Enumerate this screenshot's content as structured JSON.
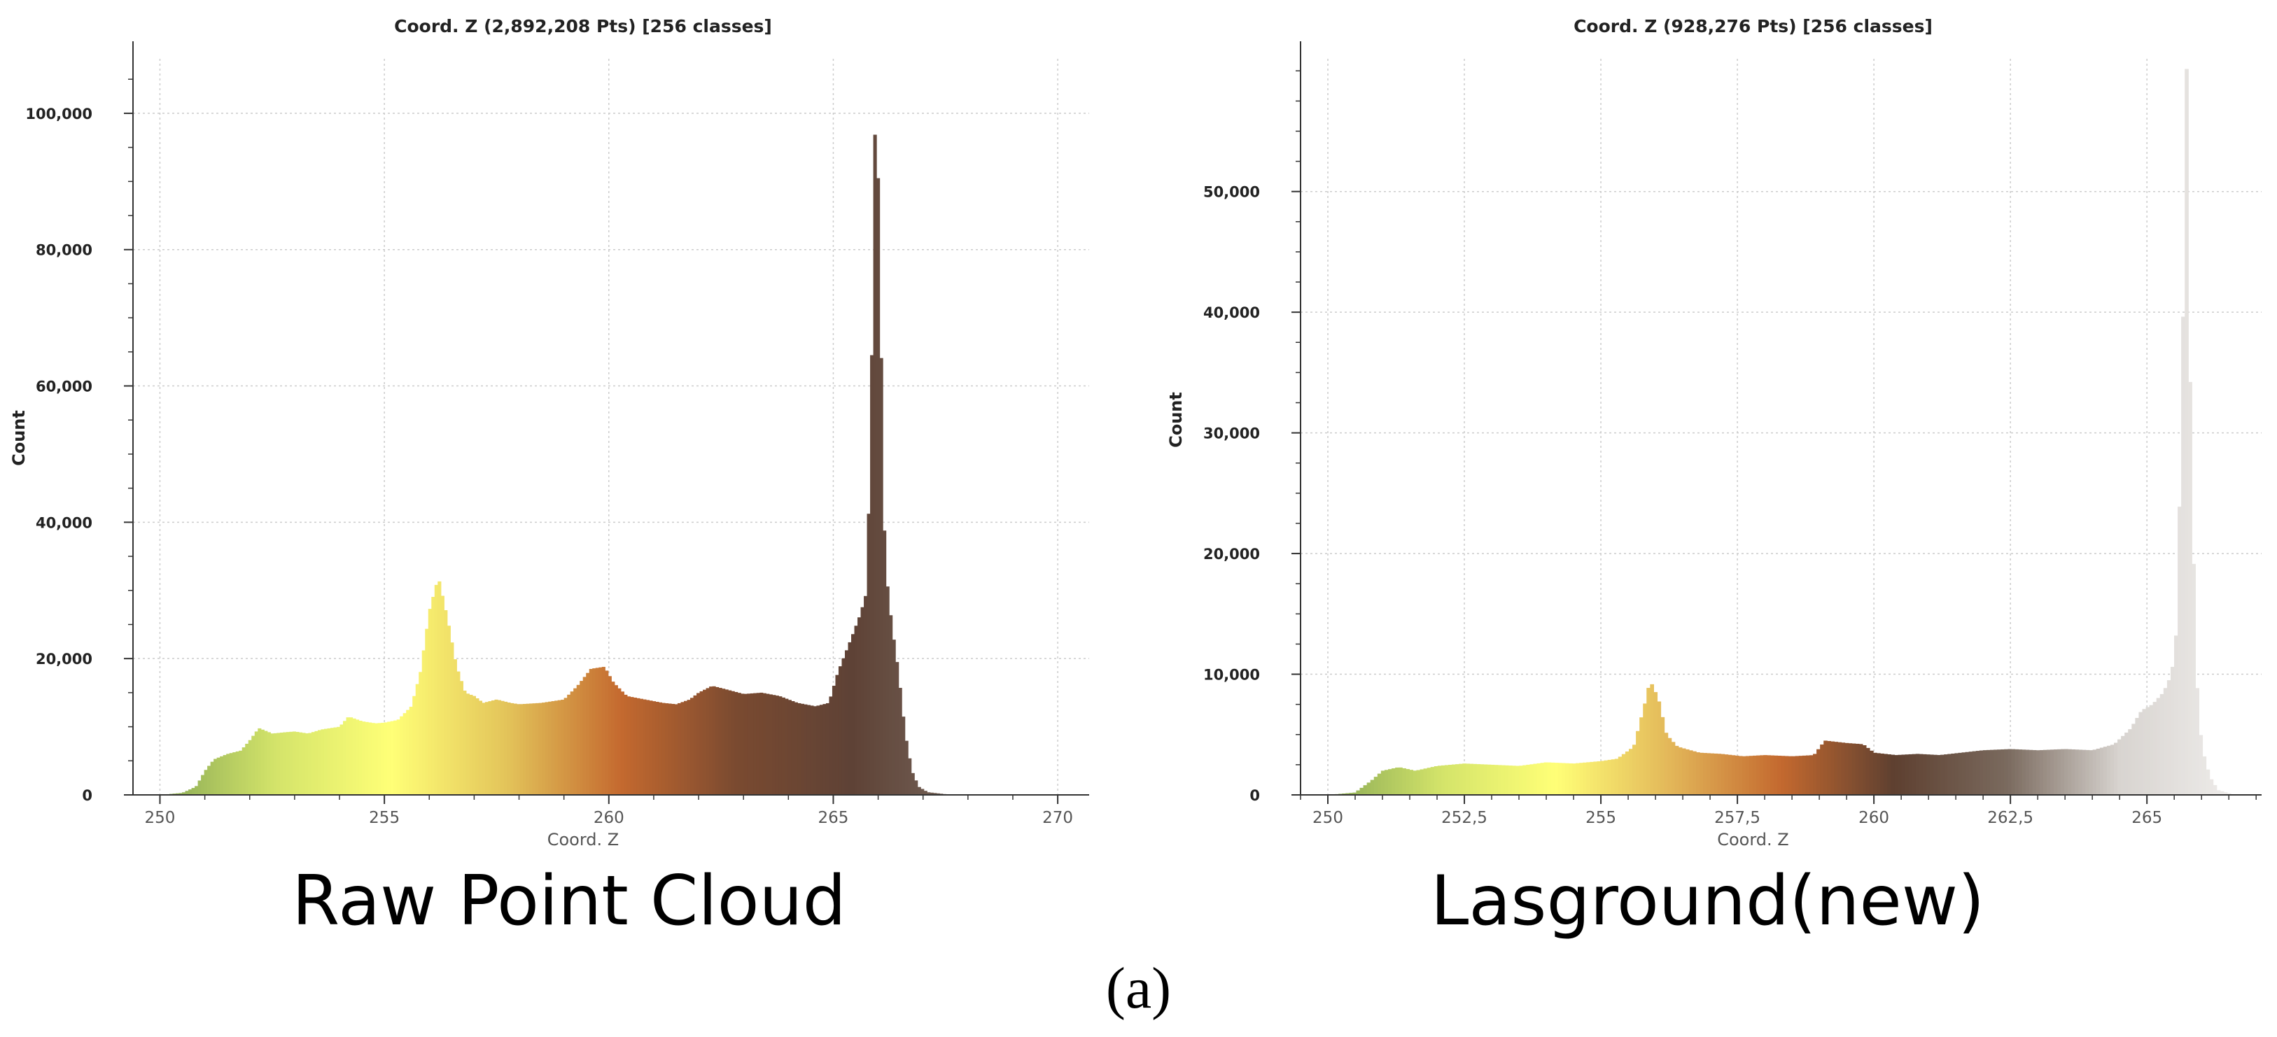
{
  "chart_data": [
    {
      "type": "bar",
      "title": "Coord. Z (2,892,208 Pts) [256 classes]",
      "xlabel": "Coord. Z",
      "ylabel": "Count",
      "xlim": [
        249.4,
        270.7
      ],
      "ylim": [
        0,
        108000
      ],
      "xticks": [
        250,
        255,
        260,
        265,
        270
      ],
      "xtick_labels": [
        "250",
        "255",
        "260",
        "265",
        "270"
      ],
      "yticks": [
        0,
        20000,
        40000,
        60000,
        80000,
        100000
      ],
      "ytick_labels": [
        "0",
        "20,000",
        "40,000",
        "60,000",
        "80,000",
        "100,000"
      ],
      "grid": true,
      "legend": "none",
      "bins": 256,
      "histogram": [
        [
          250.0,
          0
        ],
        [
          250.5,
          300
        ],
        [
          250.8,
          1200
        ],
        [
          251.0,
          3500
        ],
        [
          251.2,
          5200
        ],
        [
          251.5,
          6000
        ],
        [
          251.8,
          6500
        ],
        [
          252.0,
          8000
        ],
        [
          252.2,
          9800
        ],
        [
          252.5,
          9000
        ],
        [
          252.8,
          9200
        ],
        [
          253.0,
          9300
        ],
        [
          253.3,
          9000
        ],
        [
          253.6,
          9600
        ],
        [
          254.0,
          10000
        ],
        [
          254.2,
          11500
        ],
        [
          254.5,
          10800
        ],
        [
          254.8,
          10500
        ],
        [
          255.0,
          10600
        ],
        [
          255.3,
          11000
        ],
        [
          255.6,
          13000
        ],
        [
          255.8,
          18000
        ],
        [
          256.0,
          27000
        ],
        [
          256.2,
          32000
        ],
        [
          256.4,
          26000
        ],
        [
          256.6,
          19000
        ],
        [
          256.8,
          15000
        ],
        [
          257.0,
          14500
        ],
        [
          257.2,
          13500
        ],
        [
          257.5,
          14000
        ],
        [
          257.8,
          13500
        ],
        [
          258.0,
          13300
        ],
        [
          258.5,
          13500
        ],
        [
          259.0,
          14000
        ],
        [
          259.3,
          16000
        ],
        [
          259.6,
          18500
        ],
        [
          259.9,
          18800
        ],
        [
          260.1,
          16500
        ],
        [
          260.4,
          14500
        ],
        [
          260.8,
          14000
        ],
        [
          261.2,
          13500
        ],
        [
          261.5,
          13300
        ],
        [
          261.8,
          14000
        ],
        [
          262.0,
          15000
        ],
        [
          262.3,
          16000
        ],
        [
          262.6,
          15500
        ],
        [
          263.0,
          14800
        ],
        [
          263.4,
          15000
        ],
        [
          263.8,
          14500
        ],
        [
          264.2,
          13500
        ],
        [
          264.6,
          13000
        ],
        [
          264.9,
          13500
        ],
        [
          265.1,
          18000
        ],
        [
          265.4,
          23000
        ],
        [
          265.6,
          26500
        ],
        [
          265.75,
          30000
        ],
        [
          265.85,
          62000
        ],
        [
          265.95,
          108000
        ],
        [
          266.05,
          70000
        ],
        [
          266.15,
          34000
        ],
        [
          266.3,
          25000
        ],
        [
          266.45,
          18000
        ],
        [
          266.6,
          9000
        ],
        [
          266.75,
          3500
        ],
        [
          266.9,
          1200
        ],
        [
          267.1,
          400
        ],
        [
          267.5,
          100
        ],
        [
          268.0,
          0
        ]
      ]
    },
    {
      "type": "bar",
      "title": "Coord. Z (928,276 Pts) [256 classes]",
      "xlabel": "Coord. Z",
      "ylabel": "Count",
      "xlim": [
        249.5,
        267.1
      ],
      "ylim": [
        0,
        61000
      ],
      "xticks": [
        250,
        252.5,
        255,
        257.5,
        260,
        262.5,
        265
      ],
      "xtick_labels": [
        "250",
        "252,5",
        "255",
        "257,5",
        "260",
        "262,5",
        "265"
      ],
      "yticks": [
        0,
        10000,
        20000,
        30000,
        40000,
        50000
      ],
      "ytick_labels": [
        "0",
        "10,000",
        "20,000",
        "30,000",
        "40,000",
        "50,000"
      ],
      "grid": true,
      "legend": "none",
      "bins": 256,
      "histogram": [
        [
          250.0,
          0
        ],
        [
          250.5,
          200
        ],
        [
          250.8,
          1200
        ],
        [
          251.0,
          2000
        ],
        [
          251.3,
          2300
        ],
        [
          251.6,
          2000
        ],
        [
          252.0,
          2400
        ],
        [
          252.5,
          2600
        ],
        [
          253.0,
          2500
        ],
        [
          253.5,
          2400
        ],
        [
          254.0,
          2700
        ],
        [
          254.5,
          2600
        ],
        [
          255.0,
          2800
        ],
        [
          255.3,
          3000
        ],
        [
          255.6,
          4000
        ],
        [
          255.8,
          7500
        ],
        [
          255.9,
          9500
        ],
        [
          256.05,
          8000
        ],
        [
          256.2,
          5000
        ],
        [
          256.4,
          4000
        ],
        [
          256.8,
          3500
        ],
        [
          257.2,
          3400
        ],
        [
          257.6,
          3200
        ],
        [
          258.0,
          3300
        ],
        [
          258.5,
          3200
        ],
        [
          258.9,
          3300
        ],
        [
          259.1,
          4500
        ],
        [
          259.5,
          4300
        ],
        [
          259.8,
          4200
        ],
        [
          260.0,
          3500
        ],
        [
          260.4,
          3300
        ],
        [
          260.8,
          3400
        ],
        [
          261.2,
          3300
        ],
        [
          261.6,
          3500
        ],
        [
          262.0,
          3700
        ],
        [
          262.5,
          3800
        ],
        [
          263.0,
          3700
        ],
        [
          263.5,
          3800
        ],
        [
          264.0,
          3700
        ],
        [
          264.4,
          4200
        ],
        [
          264.7,
          5500
        ],
        [
          264.9,
          7000
        ],
        [
          265.1,
          7500
        ],
        [
          265.3,
          8500
        ],
        [
          265.45,
          10000
        ],
        [
          265.55,
          14000
        ],
        [
          265.65,
          36000
        ],
        [
          265.72,
          62000
        ],
        [
          265.8,
          30000
        ],
        [
          265.9,
          10000
        ],
        [
          266.0,
          4000
        ],
        [
          266.15,
          1500
        ],
        [
          266.3,
          400
        ],
        [
          266.6,
          0
        ]
      ]
    }
  ],
  "captions": {
    "left": "Raw Point Cloud",
    "right": "Lasground(new)",
    "figure_label": "(a)"
  },
  "colors": {
    "ramp_left": [
      "#8aaa55",
      "#d4e46a",
      "#ffff77",
      "#e3c45a",
      "#c4692f",
      "#7a4a30",
      "#5e4236",
      "#75645a"
    ],
    "ramp_right": [
      "#8aaa55",
      "#d4e46a",
      "#ffff77",
      "#e3b85a",
      "#c4692f",
      "#5e4030",
      "#7a6a5e",
      "#d8d4d0",
      "#eeecea"
    ],
    "grid": "#cccccc",
    "axis": "#333333"
  }
}
